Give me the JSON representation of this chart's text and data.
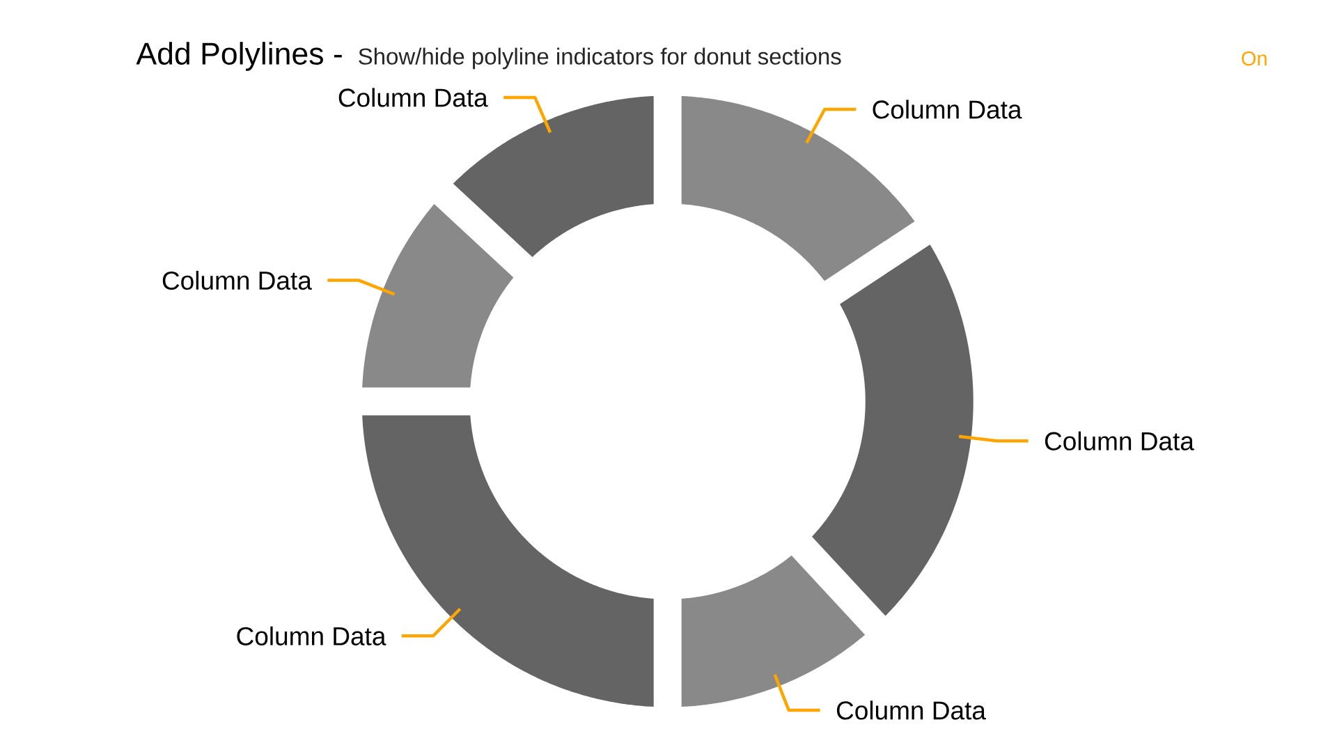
{
  "chart_data": {
    "type": "donut",
    "title": "Add Polylines -",
    "subtitle": "Show/hide polyline indicators for donut sections",
    "categories": [
      "Column Data",
      "Column Data",
      "Column Data",
      "Column Data",
      "Column Data",
      "Column Data"
    ],
    "values": [
      15.7,
      22.4,
      11.9,
      25.0,
      11.9,
      13.1
    ],
    "colors": [
      "#898989",
      "#646464",
      "#898989",
      "#646464",
      "#898989",
      "#646464"
    ],
    "annotations": [
      "On"
    ]
  }
}
